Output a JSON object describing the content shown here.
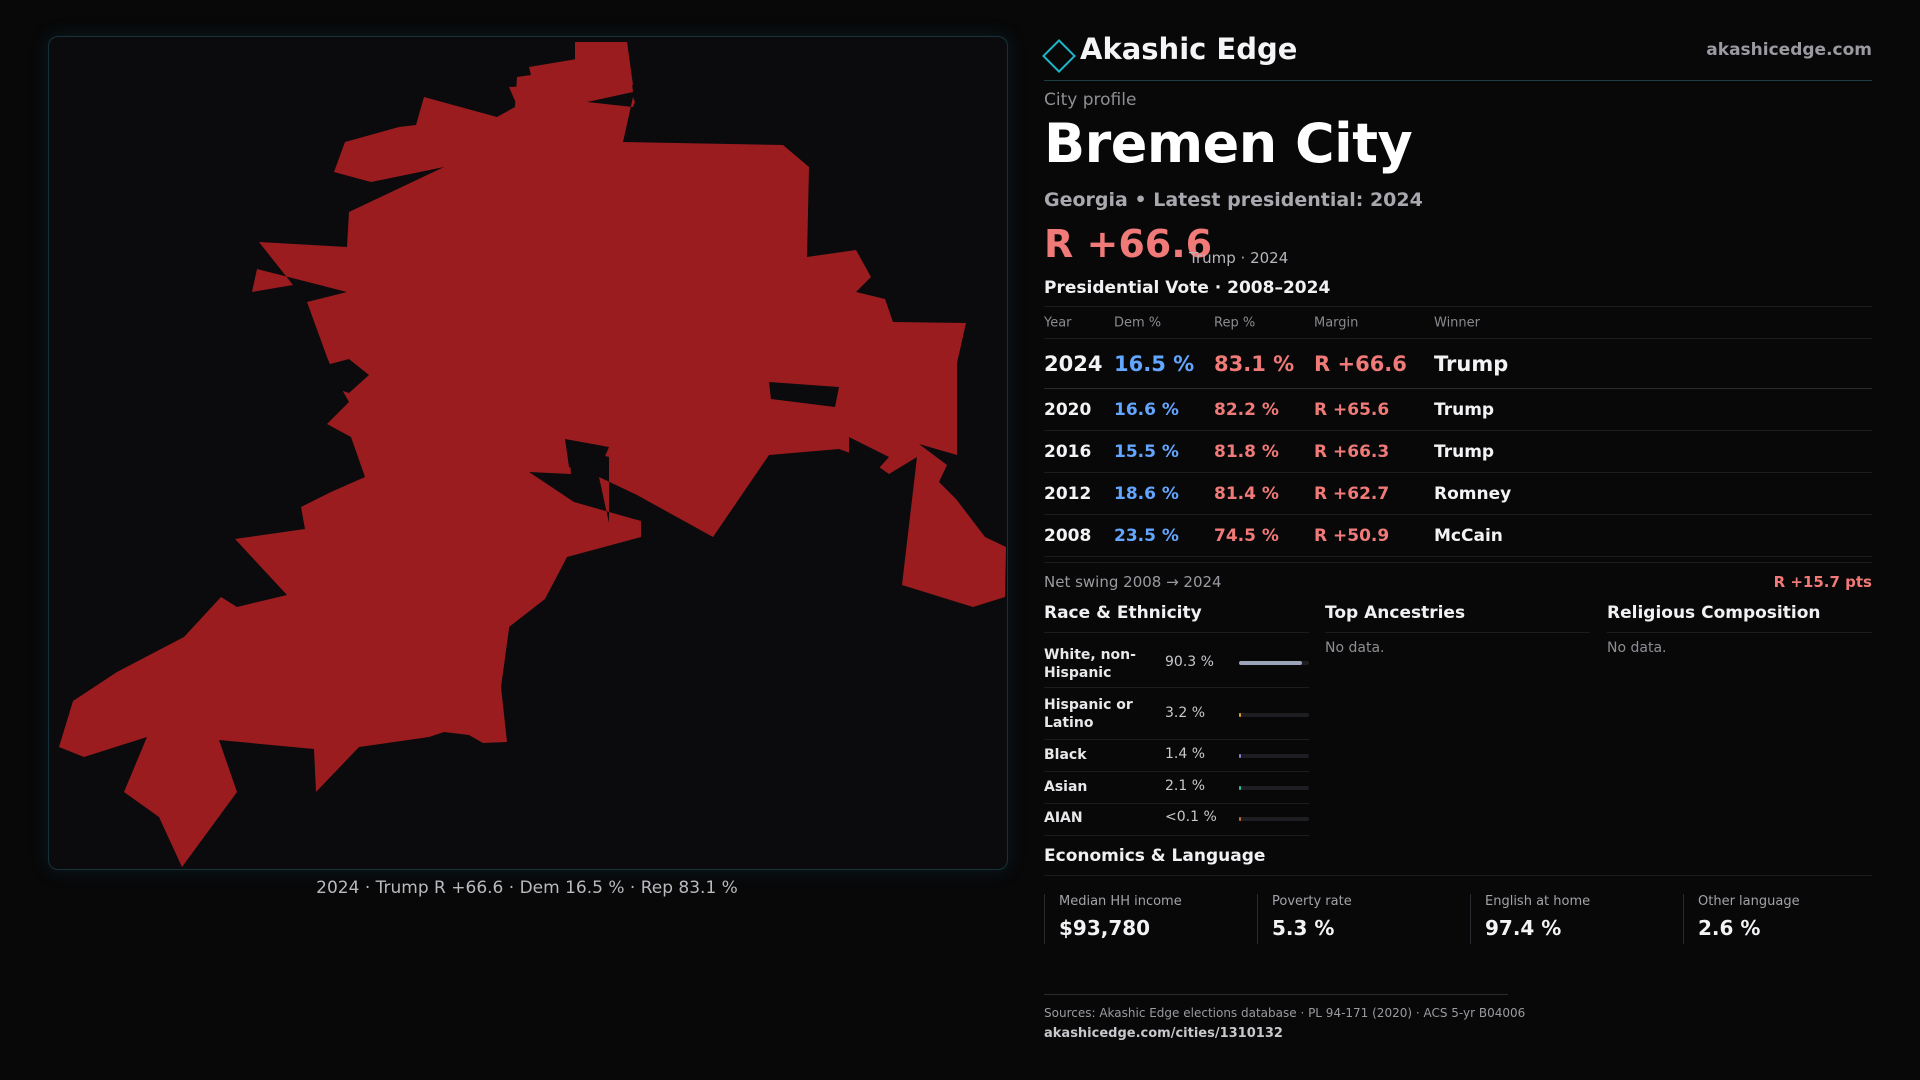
{
  "map": {
    "caption": "2024 · Trump R +66.6 · Dem 16.5 % · Rep 83.1 %",
    "fill_color": "#9b1c1f"
  },
  "header": {
    "brand": "Akashic Edge",
    "site": "akashicedge.com",
    "logo_icon": "diamond-icon"
  },
  "profile": {
    "kicker": "City profile",
    "title": "Bremen City",
    "subtitle": "Georgia • Latest presidential: 2024",
    "margin": "R +66.6",
    "margin_note": "Trump · 2024"
  },
  "vote_table": {
    "title": "Presidential Vote · 2008–2024",
    "headers": {
      "year": "Year",
      "dem": "Dem %",
      "rep": "Rep %",
      "margin": "Margin",
      "winner": "Winner"
    },
    "rows": [
      {
        "year": "2024",
        "dem": "16.5 %",
        "rep": "83.1 %",
        "margin": "R +66.6",
        "winner": "Trump"
      },
      {
        "year": "2020",
        "dem": "16.6 %",
        "rep": "82.2 %",
        "margin": "R +65.6",
        "winner": "Trump"
      },
      {
        "year": "2016",
        "dem": "15.5 %",
        "rep": "81.8 %",
        "margin": "R +66.3",
        "winner": "Trump"
      },
      {
        "year": "2012",
        "dem": "18.6 %",
        "rep": "81.4 %",
        "margin": "R +62.7",
        "winner": "Romney"
      },
      {
        "year": "2008",
        "dem": "23.5 %",
        "rep": "74.5 %",
        "margin": "R +50.9",
        "winner": "McCain"
      }
    ],
    "colors": {
      "dem": "#63a6ff",
      "rep": "#f07a78"
    }
  },
  "swing": {
    "label": "Net swing 2008 → 2024",
    "value": "R +15.7 pts"
  },
  "race": {
    "title": "Race & Ethnicity",
    "rows": [
      {
        "label": "White, non-Hispanic",
        "value": "90.3 %",
        "pct": 90.3,
        "color": "#9aa4b8"
      },
      {
        "label": "Hispanic or Latino",
        "value": "3.2 %",
        "pct": 3.2,
        "color": "#e0a030"
      },
      {
        "label": "Black",
        "value": "1.4 %",
        "pct": 1.4,
        "color": "#8a7fd0"
      },
      {
        "label": "Asian",
        "value": "2.1 %",
        "pct": 2.1,
        "color": "#2fc0a0"
      },
      {
        "label": "AIAN",
        "value": "<0.1 %",
        "pct": 0.05,
        "color": "#c07040"
      }
    ]
  },
  "ancestries": {
    "title": "Top Ancestries",
    "empty": "No data."
  },
  "religion": {
    "title": "Religious Composition",
    "empty": "No data."
  },
  "economics": {
    "title": "Economics & Language",
    "items": [
      {
        "label": "Median HH income",
        "value": "$93,780"
      },
      {
        "label": "Poverty rate",
        "value": "5.3 %"
      },
      {
        "label": "English at home",
        "value": "97.4 %"
      },
      {
        "label": "Other language",
        "value": "2.6 %"
      }
    ]
  },
  "footer": {
    "sources": "Sources: Akashic Edge elections database · PL 94-171 (2020) · ACS 5-yr B04006",
    "url": "akashicedge.com/cities/1310132"
  }
}
